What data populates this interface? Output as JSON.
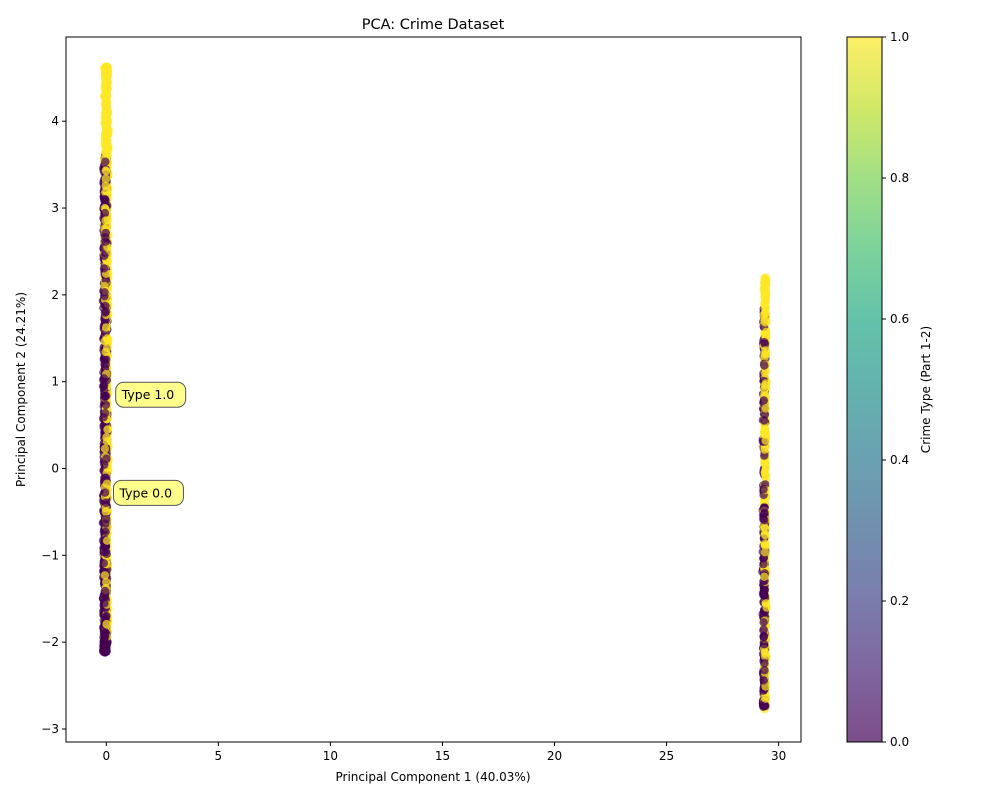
{
  "chart_data": {
    "type": "scatter",
    "title": "PCA: Crime Dataset",
    "xlabel": "Principal Component 1 (40.03%)",
    "ylabel": "Principal Component 2 (24.21%)",
    "xlim": [
      -1.8,
      31.0
    ],
    "ylim": [
      -3.15,
      4.97
    ],
    "xticks": [
      0,
      5,
      10,
      15,
      20,
      25,
      30
    ],
    "yticks": [
      -3,
      -2,
      -1,
      0,
      1,
      2,
      3,
      4
    ],
    "colorbar": {
      "label": "Crime Type (Part 1-2)",
      "ticks": [
        "0.0",
        "0.2",
        "0.4",
        "0.6",
        "0.8",
        "1.0"
      ],
      "range": [
        0,
        1
      ],
      "colormap": "viridis"
    },
    "point_alpha": 0.7,
    "colors": {
      "type0": "#440154",
      "type1": "#fde725"
    },
    "clusters": [
      {
        "name": "cluster-left",
        "x_center": -0.05,
        "x_spread": 0.12,
        "type0_y_range": [
          -2.12,
          3.62
        ],
        "type1_y_range": [
          -1.95,
          4.63
        ]
      },
      {
        "name": "cluster-right",
        "x_center": 29.35,
        "x_spread": 0.08,
        "type0_y_range": [
          -2.75,
          1.85
        ],
        "type1_y_range": [
          -2.78,
          2.2
        ]
      }
    ],
    "annotations": [
      {
        "text": "Type 1.0",
        "x": 0.15,
        "y": 0.85
      },
      {
        "text": "Type 0.0",
        "x": 0.05,
        "y": -0.28
      }
    ]
  }
}
